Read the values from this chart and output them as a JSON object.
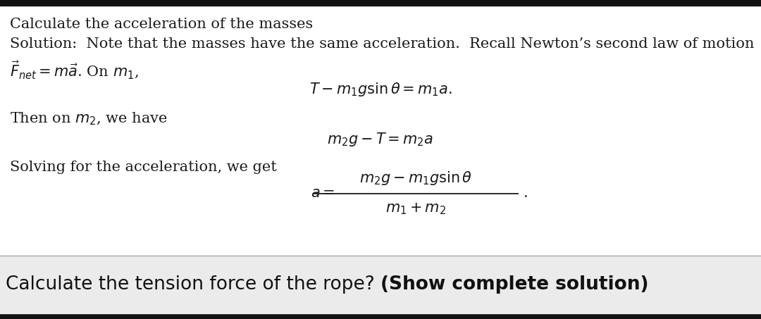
{
  "fig_width": 10.8,
  "fig_height": 4.53,
  "bg_color": "#ffffff",
  "border_top_color": "#222222",
  "border_bottom_color": "#000000",
  "bottom_bar_color": "#ebebeb",
  "title_text": "Calculate the acceleration of the masses",
  "sol_line1": "Solution:  Note that the masses have the same acceleration.  Recall Newton’s second law of motion",
  "sol_line2": "$\\vec{F}_{net} = m\\vec{a}$. On $m_1$,",
  "eq1": "$T - m_1 g \\sin\\theta = m_1 a.$",
  "then_text": "Then on $m_2$, we have",
  "eq2": "$m_2 g - T = m_2 a$",
  "solving_text": "Solving for the acceleration, we get",
  "eq3_num": "$m_2 g - m_1 g \\sin\\theta$",
  "eq3_den": "$m_1 + m_2$",
  "bottom_normal": "Calculate the tension force of the rope? ",
  "bottom_bold": "(Show complete solution)",
  "text_color": "#1a1a1a",
  "math_color": "#1a1a1a"
}
